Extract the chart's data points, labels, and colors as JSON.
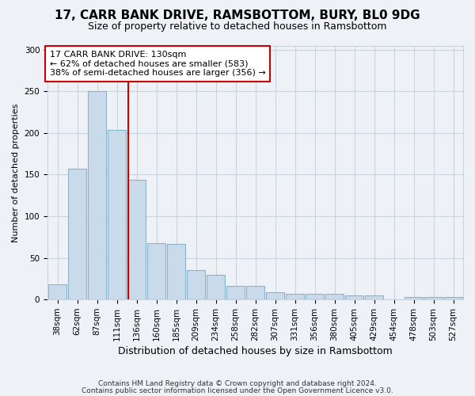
{
  "title1": "17, CARR BANK DRIVE, RAMSBOTTOM, BURY, BL0 9DG",
  "title2": "Size of property relative to detached houses in Ramsbottom",
  "xlabel": "Distribution of detached houses by size in Ramsbottom",
  "ylabel": "Number of detached properties",
  "categories": [
    "38sqm",
    "62sqm",
    "87sqm",
    "111sqm",
    "136sqm",
    "160sqm",
    "185sqm",
    "209sqm",
    "234sqm",
    "258sqm",
    "282sqm",
    "307sqm",
    "331sqm",
    "356sqm",
    "380sqm",
    "405sqm",
    "429sqm",
    "454sqm",
    "478sqm",
    "503sqm",
    "527sqm"
  ],
  "values": [
    18,
    157,
    250,
    204,
    144,
    68,
    67,
    35,
    30,
    16,
    16,
    9,
    7,
    7,
    7,
    5,
    5,
    0,
    3,
    3,
    3
  ],
  "bar_color": "#c9daea",
  "bar_edge_color": "#8ab4cc",
  "vline_color": "#cc0000",
  "vline_pos": 3.575,
  "annotation_text": "17 CARR BANK DRIVE: 130sqm\n← 62% of detached houses are smaller (583)\n38% of semi-detached houses are larger (356) →",
  "annotation_box_color": "#ffffff",
  "annotation_border_color": "#cc0000",
  "ylim": [
    0,
    305
  ],
  "yticks": [
    0,
    50,
    100,
    150,
    200,
    250,
    300
  ],
  "grid_color": "#c8d4e0",
  "footer1": "Contains HM Land Registry data © Crown copyright and database right 2024.",
  "footer2": "Contains public sector information licensed under the Open Government Licence v3.0.",
  "background_color": "#eef2f7",
  "plot_bg_color": "#eef2f7",
  "title1_fontsize": 11,
  "title2_fontsize": 9,
  "xlabel_fontsize": 9,
  "ylabel_fontsize": 8,
  "tick_fontsize": 7.5,
  "footer_fontsize": 6.5,
  "ann_fontsize": 8
}
